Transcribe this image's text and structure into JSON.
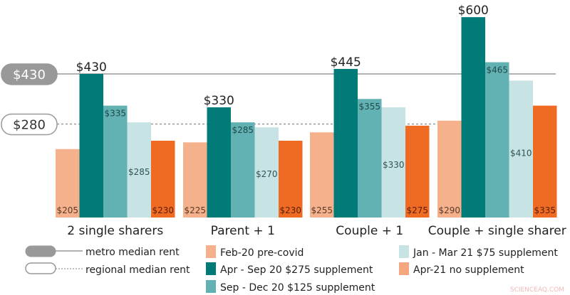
{
  "chart_data": {
    "type": "bar",
    "categories": [
      "2 single sharers",
      "Parent + 1",
      "Couple + 1",
      "Couple + single sharer"
    ],
    "series": [
      {
        "name": "Feb-20 pre-covid",
        "color": "#f5b08c",
        "values": [
          205,
          225,
          255,
          290
        ],
        "labels": [
          "$205",
          "$225",
          "$255",
          "$290"
        ]
      },
      {
        "name": "Apr - Sep 20 $275 supplement",
        "color": "#007b78",
        "values": [
          430,
          330,
          445,
          600
        ],
        "labels": [
          "$430",
          "$330",
          "$445",
          "$600"
        ]
      },
      {
        "name": "Sep - Dec 20 $125 supplement",
        "color": "#62b2b3",
        "values": [
          335,
          285,
          355,
          465
        ],
        "labels": [
          "$335",
          "$285",
          "$355",
          "$465"
        ]
      },
      {
        "name": "Jan - Mar 21 $75 supplement",
        "color": "#c8e3e3",
        "values": [
          285,
          270,
          330,
          410
        ],
        "labels": [
          "$285",
          "$270",
          "$330",
          "$410"
        ]
      },
      {
        "name": "Apr-21 no supplement",
        "color": "#ef6b24",
        "legend_color": "#f4a77f",
        "values": [
          230,
          230,
          275,
          335
        ],
        "labels": [
          "$230",
          "$230",
          "$275",
          "$335"
        ]
      }
    ],
    "reference_lines": [
      {
        "name": "metro median rent",
        "value": 430,
        "label": "$430",
        "style": "solid",
        "color": "#999999"
      },
      {
        "name": "regional median rent",
        "value": 280,
        "label": "$280",
        "style": "dotted",
        "color": "#999999"
      }
    ],
    "ylim": [
      0,
      640
    ],
    "grid": false,
    "legend_position": "bottom",
    "title": "",
    "xlabel": "",
    "ylabel": ""
  },
  "watermark": "SCIENCEAQ.COM"
}
